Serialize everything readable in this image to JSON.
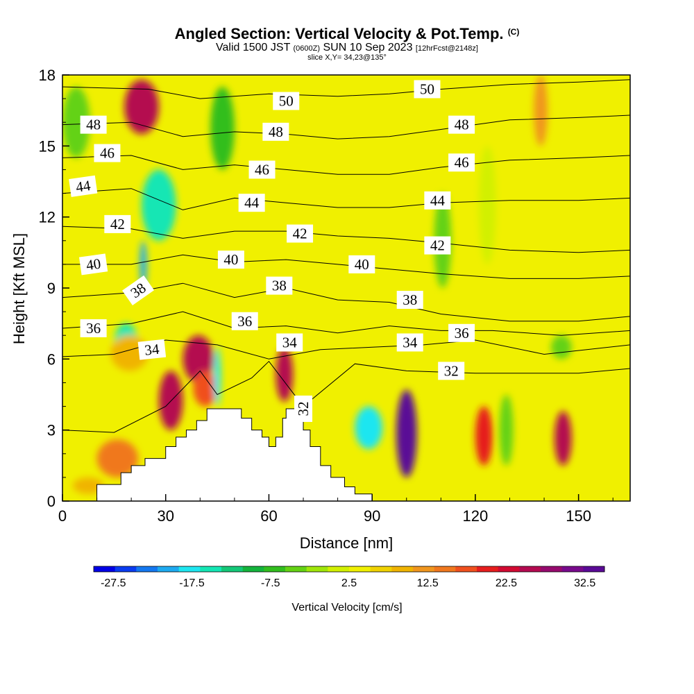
{
  "titles": {
    "main": "Angled Section: Vertical Velocity & Pot.Temp.",
    "main_tag": "(C)",
    "sub_a": "Valid 1500 JST",
    "sub_b": "(0600Z)",
    "sub_c": "SUN 10 Sep 2023",
    "sub_d": "[12hrFcst@2148z]",
    "slice": "slice X,Y= 34,23@135°"
  },
  "chart_data": {
    "type": "heatmap",
    "xlabel": "Distance [nm]",
    "ylabel": "Height [Kft MSL]",
    "xlim": [
      0,
      165
    ],
    "ylim": [
      0,
      18
    ],
    "x_ticks": [
      0,
      30,
      60,
      90,
      120,
      150
    ],
    "x_tick_labels": [
      "0",
      "30",
      "60",
      "90",
      "120",
      "150"
    ],
    "y_ticks": [
      0,
      3,
      6,
      9,
      12,
      15,
      18
    ],
    "y_tick_labels": [
      "0",
      "3",
      "6",
      "9",
      "12",
      "15",
      "18"
    ],
    "fill_variable": "Vertical Velocity [cm/s]",
    "contour_variable": "Pot.Temp. (C)",
    "colorbar": {
      "label": "Vertical Velocity [cm/s]",
      "min": -30,
      "max": 35,
      "step": 2.5,
      "tick_values": [
        -27.5,
        -17.5,
        -7.5,
        2.5,
        12.5,
        22.5,
        32.5
      ],
      "tick_labels": [
        "-27.5",
        "-17.5",
        "-7.5",
        "2.5",
        "12.5",
        "22.5",
        "32.5"
      ],
      "colors": [
        "#0000e6",
        "#0a3cf0",
        "#1478f0",
        "#1eaaf0",
        "#1ee6f0",
        "#14e6b4",
        "#14c878",
        "#14b43c",
        "#32be1e",
        "#64d214",
        "#a0e60a",
        "#d2f000",
        "#f0f000",
        "#f0d200",
        "#f0b400",
        "#f0961e",
        "#f0781e",
        "#f0501e",
        "#e61e1e",
        "#d20a32",
        "#b40a50",
        "#960a6e",
        "#780a8c",
        "#5a0a96"
      ]
    },
    "background_value": 0.5,
    "cells": [
      {
        "x": [
          3,
          12
        ],
        "y": [
          0.3,
          1.0
        ],
        "v": 5.0
      },
      {
        "x": [
          0,
          8
        ],
        "y": [
          14.5,
          17.5
        ],
        "v": -6.5
      },
      {
        "x": [
          23,
          33
        ],
        "y": [
          11.0,
          14.0
        ],
        "v": -17.0
      },
      {
        "x": [
          22.5,
          24.5
        ],
        "y": [
          9.0,
          11.0
        ],
        "v": -22.0
      },
      {
        "x": [
          15,
          22
        ],
        "y": [
          5.8,
          7.5
        ],
        "v": -17.0
      },
      {
        "x": [
          18,
          28
        ],
        "y": [
          15.5,
          17.8
        ],
        "v": 20.0
      },
      {
        "x": [
          14,
          25
        ],
        "y": [
          5.5,
          7.0
        ],
        "v": 6.0
      },
      {
        "x": [
          28,
          35
        ],
        "y": [
          3.0,
          5.5
        ],
        "v": 20.0
      },
      {
        "x": [
          35,
          44
        ],
        "y": [
          5.0,
          7.0
        ],
        "v": 22.0
      },
      {
        "x": [
          38,
          45
        ],
        "y": [
          4.0,
          5.5
        ],
        "v": 14.0
      },
      {
        "x": [
          10,
          22
        ],
        "y": [
          1.0,
          2.6
        ],
        "v": 10.0
      },
      {
        "x": [
          44,
          46
        ],
        "y": [
          4.0,
          6.5
        ],
        "v": -20.0
      },
      {
        "x": [
          43,
          50
        ],
        "y": [
          14.0,
          17.5
        ],
        "v": -9.0
      },
      {
        "x": [
          62,
          67
        ],
        "y": [
          4.2,
          6.5
        ],
        "v": 20.0
      },
      {
        "x": [
          85,
          93
        ],
        "y": [
          2.2,
          4.0
        ],
        "v": -18.0
      },
      {
        "x": [
          97,
          103
        ],
        "y": [
          1.0,
          4.7
        ],
        "v": 30.0
      },
      {
        "x": [
          120,
          125
        ],
        "y": [
          1.5,
          4.0
        ],
        "v": 15.0
      },
      {
        "x": [
          127,
          131
        ],
        "y": [
          1.5,
          4.5
        ],
        "v": -7.0
      },
      {
        "x": [
          143,
          148
        ],
        "y": [
          1.5,
          3.8
        ],
        "v": 22.0
      },
      {
        "x": [
          108,
          113
        ],
        "y": [
          9.0,
          13.0
        ],
        "v": -7.0
      },
      {
        "x": [
          121,
          126
        ],
        "y": [
          10.0,
          15.0
        ],
        "v": -2.0
      },
      {
        "x": [
          137,
          141
        ],
        "y": [
          15.0,
          18.0
        ],
        "v": 9.0
      },
      {
        "x": [
          142,
          148
        ],
        "y": [
          6.0,
          7.0
        ],
        "v": -7.0
      }
    ],
    "terrain": {
      "x": [
        10,
        17,
        20,
        24,
        30,
        33,
        36,
        39,
        42,
        49,
        52,
        55,
        58,
        60,
        62,
        64,
        65,
        67,
        70,
        72,
        75,
        78,
        82,
        85,
        90
      ],
      "height": [
        0.7,
        1.2,
        1.5,
        1.8,
        2.3,
        2.7,
        3.0,
        3.4,
        3.9,
        3.9,
        3.5,
        3.0,
        2.7,
        2.3,
        2.7,
        3.5,
        3.9,
        3.9,
        3.0,
        2.3,
        1.5,
        1.0,
        0.6,
        0.3,
        0.0
      ]
    },
    "contours": [
      {
        "label": "32",
        "points": [
          [
            0,
            3.0
          ],
          [
            15,
            2.9
          ],
          [
            30,
            4.0
          ],
          [
            40,
            5.5
          ],
          [
            45,
            4.5
          ],
          [
            55,
            5.2
          ],
          [
            60,
            5.9
          ],
          [
            70,
            4.0
          ],
          [
            85,
            5.8
          ],
          [
            100,
            5.5
          ],
          [
            120,
            5.4
          ],
          [
            150,
            5.4
          ],
          [
            165,
            5.6
          ]
        ]
      },
      {
        "label": "34",
        "points": [
          [
            0,
            6.1
          ],
          [
            15,
            6.2
          ],
          [
            30,
            6.8
          ],
          [
            45,
            6.6
          ],
          [
            60,
            6.0
          ],
          [
            75,
            6.4
          ],
          [
            90,
            6.5
          ],
          [
            105,
            6.6
          ],
          [
            120,
            6.8
          ],
          [
            140,
            6.2
          ],
          [
            165,
            6.6
          ]
        ]
      },
      {
        "label": "36",
        "points": [
          [
            0,
            7.3
          ],
          [
            20,
            7.5
          ],
          [
            35,
            8.0
          ],
          [
            50,
            7.3
          ],
          [
            65,
            7.4
          ],
          [
            80,
            7.1
          ],
          [
            95,
            7.4
          ],
          [
            110,
            7.2
          ],
          [
            125,
            7.2
          ],
          [
            145,
            7.0
          ],
          [
            165,
            7.2
          ]
        ]
      },
      {
        "label": "38",
        "points": [
          [
            0,
            8.6
          ],
          [
            20,
            8.8
          ],
          [
            35,
            9.2
          ],
          [
            50,
            8.6
          ],
          [
            65,
            9.0
          ],
          [
            80,
            8.5
          ],
          [
            95,
            8.4
          ],
          [
            110,
            7.9
          ],
          [
            130,
            7.6
          ],
          [
            150,
            7.6
          ],
          [
            165,
            7.8
          ]
        ]
      },
      {
        "label": "40",
        "points": [
          [
            0,
            10.0
          ],
          [
            20,
            10.0
          ],
          [
            35,
            10.4
          ],
          [
            50,
            10.1
          ],
          [
            65,
            10.2
          ],
          [
            80,
            10.0
          ],
          [
            95,
            9.8
          ],
          [
            110,
            9.6
          ],
          [
            130,
            9.4
          ],
          [
            150,
            9.4
          ],
          [
            165,
            9.5
          ]
        ]
      },
      {
        "label": "42",
        "points": [
          [
            0,
            11.6
          ],
          [
            20,
            11.5
          ],
          [
            35,
            11.1
          ],
          [
            50,
            11.4
          ],
          [
            65,
            11.4
          ],
          [
            80,
            11.2
          ],
          [
            95,
            11.1
          ],
          [
            110,
            10.9
          ],
          [
            130,
            10.6
          ],
          [
            150,
            10.5
          ],
          [
            165,
            10.6
          ]
        ]
      },
      {
        "label": "44",
        "points": [
          [
            0,
            13.0
          ],
          [
            20,
            13.2
          ],
          [
            35,
            12.3
          ],
          [
            50,
            12.8
          ],
          [
            65,
            12.6
          ],
          [
            80,
            12.4
          ],
          [
            95,
            12.4
          ],
          [
            110,
            12.6
          ],
          [
            130,
            12.7
          ],
          [
            150,
            12.7
          ],
          [
            165,
            12.8
          ]
        ]
      },
      {
        "label": "46",
        "points": [
          [
            0,
            14.5
          ],
          [
            20,
            14.6
          ],
          [
            35,
            14.0
          ],
          [
            50,
            14.2
          ],
          [
            65,
            14.0
          ],
          [
            80,
            13.8
          ],
          [
            95,
            13.8
          ],
          [
            110,
            14.1
          ],
          [
            130,
            14.4
          ],
          [
            150,
            14.5
          ],
          [
            165,
            14.6
          ]
        ]
      },
      {
        "label": "48",
        "points": [
          [
            0,
            15.9
          ],
          [
            20,
            16.0
          ],
          [
            35,
            15.4
          ],
          [
            50,
            15.6
          ],
          [
            65,
            15.5
          ],
          [
            80,
            15.3
          ],
          [
            95,
            15.4
          ],
          [
            110,
            15.7
          ],
          [
            130,
            16.1
          ],
          [
            150,
            16.2
          ],
          [
            165,
            16.3
          ]
        ]
      },
      {
        "label": "50",
        "points": [
          [
            0,
            17.5
          ],
          [
            25,
            17.4
          ],
          [
            40,
            17.0
          ],
          [
            60,
            17.2
          ],
          [
            80,
            17.1
          ],
          [
            95,
            17.2
          ],
          [
            110,
            17.4
          ],
          [
            130,
            17.6
          ],
          [
            150,
            17.7
          ],
          [
            165,
            17.8
          ]
        ]
      }
    ],
    "contour_labels": [
      {
        "text": "48",
        "x": 9,
        "y": 15.9,
        "angle": 0
      },
      {
        "text": "46",
        "x": 13,
        "y": 14.7,
        "angle": 0
      },
      {
        "text": "44",
        "x": 6,
        "y": 13.3,
        "angle": -8
      },
      {
        "text": "42",
        "x": 16,
        "y": 11.7,
        "angle": 0
      },
      {
        "text": "40",
        "x": 9,
        "y": 10.0,
        "angle": -8
      },
      {
        "text": "38",
        "x": 22,
        "y": 8.9,
        "angle": -35
      },
      {
        "text": "36",
        "x": 9,
        "y": 7.3,
        "angle": 0
      },
      {
        "text": "34",
        "x": 26,
        "y": 6.4,
        "angle": -6
      },
      {
        "text": "50",
        "x": 65,
        "y": 16.9,
        "angle": 0
      },
      {
        "text": "48",
        "x": 62,
        "y": 15.6,
        "angle": 0
      },
      {
        "text": "46",
        "x": 58,
        "y": 14.0,
        "angle": 0
      },
      {
        "text": "44",
        "x": 55,
        "y": 12.6,
        "angle": 0
      },
      {
        "text": "42",
        "x": 69,
        "y": 11.3,
        "angle": 0
      },
      {
        "text": "40",
        "x": 49,
        "y": 10.2,
        "angle": 0
      },
      {
        "text": "38",
        "x": 63,
        "y": 9.1,
        "angle": 0
      },
      {
        "text": "36",
        "x": 53,
        "y": 7.6,
        "angle": 0
      },
      {
        "text": "34",
        "x": 66,
        "y": 6.7,
        "angle": 0
      },
      {
        "text": "32",
        "x": 70,
        "y": 3.9,
        "angle": -90
      },
      {
        "text": "50",
        "x": 106,
        "y": 17.4,
        "angle": 0
      },
      {
        "text": "48",
        "x": 116,
        "y": 15.9,
        "angle": 0
      },
      {
        "text": "46",
        "x": 116,
        "y": 14.3,
        "angle": 0
      },
      {
        "text": "44",
        "x": 109,
        "y": 12.7,
        "angle": 0
      },
      {
        "text": "42",
        "x": 109,
        "y": 10.8,
        "angle": 0
      },
      {
        "text": "40",
        "x": 87,
        "y": 10.0,
        "angle": 0
      },
      {
        "text": "38",
        "x": 101,
        "y": 8.5,
        "angle": 0
      },
      {
        "text": "36",
        "x": 116,
        "y": 7.1,
        "angle": 0
      },
      {
        "text": "34",
        "x": 101,
        "y": 6.7,
        "angle": 0
      },
      {
        "text": "32",
        "x": 113,
        "y": 5.5,
        "angle": 0
      }
    ]
  }
}
